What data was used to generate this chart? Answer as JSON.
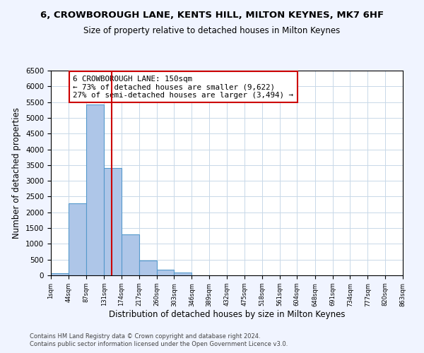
{
  "title": "6, CROWBOROUGH LANE, KENTS HILL, MILTON KEYNES, MK7 6HF",
  "subtitle": "Size of property relative to detached houses in Milton Keynes",
  "xlabel": "Distribution of detached houses by size in Milton Keynes",
  "ylabel": "Number of detached properties",
  "bar_edges": [
    1,
    44,
    87,
    131,
    174,
    217,
    260,
    303,
    346,
    389,
    432,
    475,
    518,
    561,
    604,
    648,
    691,
    734,
    777,
    820,
    863
  ],
  "bar_heights": [
    75,
    2280,
    5420,
    3400,
    1310,
    480,
    185,
    90,
    0,
    0,
    0,
    0,
    0,
    0,
    0,
    0,
    0,
    0,
    0,
    0
  ],
  "bar_color": "#aec6e8",
  "bar_edge_color": "#5599cc",
  "property_size": 150,
  "vline_color": "#cc0000",
  "annotation_box_color": "#cc0000",
  "annotation_text": "6 CROWBOROUGH LANE: 150sqm\n← 73% of detached houses are smaller (9,622)\n27% of semi-detached houses are larger (3,494) →",
  "ylim": [
    0,
    6500
  ],
  "yticks": [
    0,
    500,
    1000,
    1500,
    2000,
    2500,
    3000,
    3500,
    4000,
    4500,
    5000,
    5500,
    6000,
    6500
  ],
  "tick_labels": [
    "1sqm",
    "44sqm",
    "87sqm",
    "131sqm",
    "174sqm",
    "217sqm",
    "260sqm",
    "303sqm",
    "346sqm",
    "389sqm",
    "432sqm",
    "475sqm",
    "518sqm",
    "561sqm",
    "604sqm",
    "648sqm",
    "691sqm",
    "734sqm",
    "777sqm",
    "820sqm",
    "863sqm"
  ],
  "footer1": "Contains HM Land Registry data © Crown copyright and database right 2024.",
  "footer2": "Contains public sector information licensed under the Open Government Licence v3.0.",
  "background_color": "#f0f4ff",
  "plot_bg_color": "#ffffff",
  "grid_color": "#c8d8e8"
}
